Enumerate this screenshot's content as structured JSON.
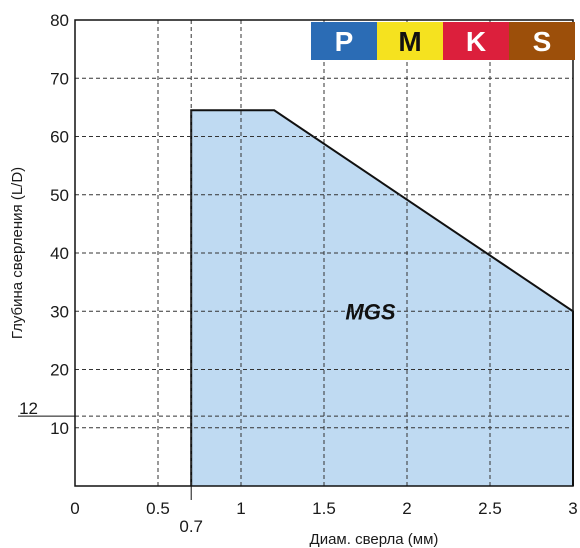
{
  "chart_data": {
    "type": "area",
    "title": "",
    "xlabel": "Диам. сверла (мм)",
    "ylabel": "Глубина сверления (L/D)",
    "xlim": [
      0,
      3
    ],
    "ylim": [
      0,
      80
    ],
    "x_ticks": [
      "0",
      "0.5",
      "1",
      "1.5",
      "2",
      "2.5",
      "3"
    ],
    "x_tick_values": [
      0,
      0.5,
      1,
      1.5,
      2,
      2.5,
      3
    ],
    "y_ticks": [
      "10",
      "20",
      "30",
      "40",
      "50",
      "60",
      "70",
      "80"
    ],
    "y_tick_values": [
      10,
      20,
      30,
      40,
      50,
      60,
      70,
      80
    ],
    "extra_x_tick": {
      "value": 0.7,
      "label": "0.7"
    },
    "extra_y_tick": {
      "value": 12,
      "label": "12"
    },
    "grid": true,
    "series": [
      {
        "name": "MGS",
        "color": "#bfdaf2",
        "outline": [
          [
            0.7,
            0
          ],
          [
            0.7,
            64.5
          ],
          [
            1.2,
            64.5
          ],
          [
            3,
            30
          ],
          [
            3,
            0
          ]
        ]
      }
    ],
    "series_label": {
      "text": "MGS",
      "x": 1.78,
      "y": 30
    },
    "material_badges": [
      {
        "label": "P",
        "bg": "#2b6cb5",
        "fg": "#ffffff"
      },
      {
        "label": "M",
        "bg": "#f5e21f",
        "fg": "#111111"
      },
      {
        "label": "K",
        "bg": "#dc1f3c",
        "fg": "#ffffff"
      },
      {
        "label": "S",
        "bg": "#9c4f0a",
        "fg": "#ffffff"
      }
    ]
  }
}
